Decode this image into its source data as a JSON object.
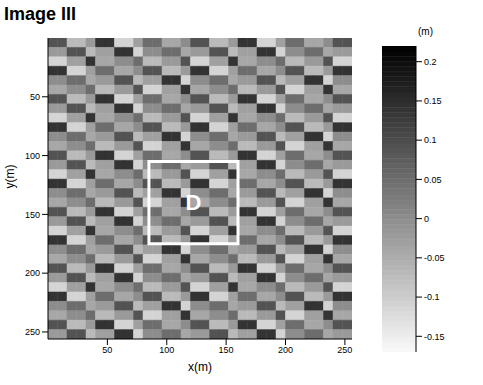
{
  "chart_data": {
    "type": "heatmap",
    "title": "Image III",
    "xlabel": "x(m)",
    "ylabel": "y(m)",
    "xlim": [
      0,
      256
    ],
    "ylim": [
      0,
      256
    ],
    "xticks": [
      50,
      100,
      150,
      200,
      250
    ],
    "yticks": [
      50,
      100,
      150,
      200,
      250
    ],
    "colorbar": {
      "label": "(m)",
      "range": [
        -0.17,
        0.22
      ],
      "ticks": [
        0.2,
        0.15,
        0.1,
        0.05,
        0,
        -0.05,
        -0.1,
        -0.15
      ]
    },
    "annotations": [
      {
        "text": "D",
        "x0": 85,
        "x1": 160,
        "y0": 105,
        "y1": 175
      }
    ],
    "cells": [
      [
        0.09,
        0.09,
        -0.07,
        -0.07,
        -0.02,
        0.14,
        0.14,
        -0.11,
        -0.11,
        -0.03,
        0.05,
        0.05,
        -0.04,
        -0.04,
        0,
        0.09,
        0.09,
        -0.07,
        -0.07,
        -0.02,
        0.14,
        0.14,
        -0.11,
        -0.11,
        -0.03,
        0.05,
        0.05,
        -0.04,
        -0.04,
        0,
        0.09,
        0.09
      ],
      [
        -0.02,
        -0.02,
        0.09,
        0.09,
        -0.07,
        -0.03,
        -0.03,
        0.14,
        0.14,
        -0.11,
        0,
        0,
        0.05,
        0.05,
        -0.04,
        -0.02,
        -0.02,
        0.09,
        0.09,
        -0.07,
        -0.03,
        -0.03,
        0.14,
        0.14,
        -0.11,
        0,
        0,
        0.05,
        0.05,
        -0.04,
        -0.02,
        -0.02
      ],
      [
        -0.11,
        -0.11,
        -0.03,
        -0.03,
        0.14,
        -0.04,
        -0.04,
        0,
        0,
        0.05,
        -0.07,
        -0.07,
        -0.02,
        -0.02,
        0.09,
        -0.11,
        -0.11,
        -0.03,
        -0.03,
        0.14,
        -0.04,
        -0.04,
        0,
        0,
        0.05,
        -0.07,
        -0.07,
        -0.02,
        -0.02,
        0.09,
        -0.11,
        -0.11
      ],
      [
        0.14,
        0.14,
        -0.11,
        -0.11,
        -0.03,
        0.05,
        0.05,
        -0.04,
        -0.04,
        0,
        0.09,
        0.09,
        -0.07,
        -0.07,
        -0.02,
        0.14,
        0.14,
        -0.11,
        -0.11,
        -0.03,
        0.05,
        0.05,
        -0.04,
        -0.04,
        0,
        0.09,
        0.09,
        -0.07,
        -0.07,
        -0.02,
        0.14,
        0.14
      ],
      [
        0,
        0,
        0.05,
        0.05,
        -0.04,
        -0.02,
        -0.02,
        0.09,
        0.09,
        -0.07,
        -0.03,
        -0.03,
        0.14,
        0.14,
        -0.11,
        0,
        0,
        0.05,
        0.05,
        -0.04,
        -0.02,
        -0.02,
        0.09,
        0.09,
        -0.07,
        -0.03,
        -0.03,
        0.14,
        0.14,
        -0.11,
        0,
        0
      ],
      [
        -0.04,
        -0.04,
        0,
        0,
        0.05,
        -0.07,
        -0.07,
        -0.02,
        -0.02,
        0.09,
        -0.11,
        -0.11,
        -0.03,
        -0.03,
        0.14,
        -0.04,
        -0.04,
        0,
        0,
        0.05,
        -0.07,
        -0.07,
        -0.02,
        -0.02,
        0.09,
        -0.11,
        -0.11,
        -0.03,
        -0.03,
        0.14,
        -0.04,
        -0.04
      ],
      [
        0.09,
        0.09,
        -0.07,
        -0.07,
        -0.02,
        0.14,
        0.14,
        -0.11,
        -0.11,
        -0.03,
        0.05,
        0.05,
        -0.04,
        -0.04,
        0,
        0.09,
        0.09,
        -0.07,
        -0.07,
        -0.02,
        0.14,
        0.14,
        -0.11,
        -0.11,
        -0.03,
        0.05,
        0.05,
        -0.04,
        -0.04,
        0,
        0.09,
        0.09
      ],
      [
        -0.02,
        -0.02,
        0.09,
        0.09,
        -0.07,
        -0.03,
        -0.03,
        0.14,
        0.14,
        -0.11,
        0,
        0,
        0.05,
        0.05,
        -0.04,
        -0.02,
        -0.02,
        0.09,
        0.09,
        -0.07,
        -0.03,
        -0.03,
        0.14,
        0.14,
        -0.11,
        0,
        0,
        0.05,
        0.05,
        -0.04,
        -0.02,
        -0.02
      ],
      [
        -0.11,
        -0.11,
        -0.03,
        -0.03,
        0.14,
        -0.04,
        -0.04,
        0,
        0,
        0.05,
        -0.07,
        -0.07,
        -0.02,
        -0.02,
        0.09,
        -0.11,
        -0.11,
        -0.03,
        -0.03,
        0.14,
        -0.04,
        -0.04,
        0,
        0,
        0.05,
        -0.07,
        -0.07,
        -0.02,
        -0.02,
        0.09,
        -0.11,
        -0.11
      ],
      [
        0.14,
        0.14,
        -0.11,
        -0.11,
        -0.03,
        0.05,
        0.05,
        -0.04,
        -0.04,
        0,
        0.09,
        0.09,
        -0.07,
        -0.07,
        -0.02,
        0.14,
        0.14,
        -0.11,
        -0.11,
        -0.03,
        0.05,
        0.05,
        -0.04,
        -0.04,
        0,
        0.09,
        0.09,
        -0.07,
        -0.07,
        -0.02,
        0.14,
        0.14
      ],
      [
        0,
        0,
        0.05,
        0.05,
        -0.04,
        -0.02,
        -0.02,
        0.09,
        0.09,
        -0.07,
        -0.03,
        -0.03,
        0.14,
        0.14,
        -0.11,
        0,
        0,
        0.05,
        0.05,
        -0.04,
        -0.02,
        -0.02,
        0.09,
        0.09,
        -0.07,
        -0.03,
        -0.03,
        0.14,
        0.14,
        -0.11,
        0,
        0
      ],
      [
        -0.04,
        -0.04,
        0,
        0,
        0.05,
        -0.07,
        -0.07,
        -0.02,
        -0.02,
        0.09,
        -0.11,
        -0.11,
        -0.03,
        -0.03,
        0.14,
        -0.04,
        -0.04,
        0,
        0,
        0.05,
        -0.07,
        -0.07,
        -0.02,
        -0.02,
        0.09,
        -0.11,
        -0.11,
        -0.03,
        -0.03,
        0.14,
        -0.04,
        -0.04
      ],
      [
        0.09,
        0.09,
        -0.07,
        -0.07,
        -0.02,
        0.14,
        0.14,
        -0.11,
        -0.11,
        -0.03,
        0.05,
        0.05,
        -0.04,
        -0.04,
        0,
        0.09,
        0.09,
        -0.07,
        -0.07,
        -0.02,
        0.14,
        0.14,
        -0.11,
        -0.11,
        -0.03,
        0.05,
        0.05,
        -0.04,
        -0.04,
        0,
        0.09,
        0.09
      ],
      [
        -0.02,
        -0.02,
        0.09,
        0.09,
        -0.07,
        -0.03,
        -0.03,
        0.14,
        0.14,
        -0.11,
        0,
        0,
        0.05,
        0.05,
        -0.04,
        -0.02,
        -0.02,
        0.09,
        0.09,
        -0.07,
        -0.03,
        -0.03,
        0.14,
        0.14,
        -0.11,
        0,
        0,
        0.05,
        0.05,
        -0.04,
        -0.02,
        -0.02
      ],
      [
        -0.11,
        -0.11,
        -0.03,
        -0.03,
        0.14,
        -0.04,
        -0.04,
        0,
        0,
        0.05,
        -0.07,
        -0.07,
        -0.02,
        -0.02,
        0.09,
        -0.11,
        -0.11,
        -0.03,
        -0.03,
        0.14,
        -0.04,
        -0.04,
        0,
        0,
        0.05,
        -0.07,
        -0.07,
        -0.02,
        -0.02,
        0.09,
        -0.11,
        -0.11
      ],
      [
        0.14,
        0.14,
        -0.11,
        -0.11,
        -0.03,
        0.05,
        0.05,
        -0.04,
        -0.04,
        0,
        0.09,
        0.09,
        -0.07,
        -0.07,
        -0.02,
        0.14,
        0.14,
        -0.11,
        -0.11,
        -0.03,
        0.05,
        0.05,
        -0.04,
        -0.04,
        0,
        0.09,
        0.09,
        -0.07,
        -0.07,
        -0.02,
        0.14,
        0.14
      ],
      [
        0,
        0,
        0.05,
        0.05,
        -0.04,
        -0.02,
        -0.02,
        0.09,
        0.09,
        -0.07,
        -0.03,
        -0.03,
        0.14,
        0.14,
        -0.11,
        0,
        0,
        0.05,
        0.05,
        -0.04,
        -0.02,
        -0.02,
        0.09,
        0.09,
        -0.07,
        -0.03,
        -0.03,
        0.14,
        0.14,
        -0.11,
        0,
        0
      ],
      [
        -0.04,
        -0.04,
        0,
        0,
        0.05,
        -0.07,
        -0.07,
        -0.02,
        -0.02,
        0.09,
        -0.11,
        -0.11,
        -0.03,
        -0.03,
        0.14,
        -0.04,
        -0.04,
        0,
        0,
        0.05,
        -0.07,
        -0.07,
        -0.02,
        -0.02,
        0.09,
        -0.11,
        -0.11,
        -0.03,
        -0.03,
        0.14,
        -0.04,
        -0.04
      ],
      [
        0.09,
        0.09,
        -0.07,
        -0.07,
        -0.02,
        0.14,
        0.14,
        -0.11,
        -0.11,
        -0.03,
        0.05,
        0.05,
        -0.04,
        -0.04,
        0,
        0.09,
        0.09,
        -0.07,
        -0.07,
        -0.02,
        0.14,
        0.14,
        -0.11,
        -0.11,
        -0.03,
        0.05,
        0.05,
        -0.04,
        -0.04,
        0,
        0.09,
        0.09
      ],
      [
        -0.02,
        -0.02,
        0.09,
        0.09,
        -0.07,
        -0.03,
        -0.03,
        0.14,
        0.14,
        -0.11,
        0,
        0,
        0.05,
        0.05,
        -0.04,
        -0.02,
        -0.02,
        0.09,
        0.09,
        -0.07,
        -0.03,
        -0.03,
        0.14,
        0.14,
        -0.11,
        0,
        0,
        0.05,
        0.05,
        -0.04,
        -0.02,
        -0.02
      ],
      [
        -0.11,
        -0.11,
        -0.03,
        -0.03,
        0.14,
        -0.04,
        -0.04,
        0,
        0,
        0.05,
        -0.07,
        -0.07,
        -0.02,
        -0.02,
        0.09,
        -0.11,
        -0.11,
        -0.03,
        -0.03,
        0.14,
        -0.04,
        -0.04,
        0,
        0,
        0.05,
        -0.07,
        -0.07,
        -0.02,
        -0.02,
        0.09,
        -0.11,
        -0.11
      ],
      [
        0.14,
        0.14,
        -0.11,
        -0.11,
        -0.03,
        0.05,
        0.05,
        -0.04,
        -0.04,
        0,
        0.09,
        0.09,
        -0.07,
        -0.07,
        -0.02,
        0.14,
        0.14,
        -0.11,
        -0.11,
        -0.03,
        0.05,
        0.05,
        -0.04,
        -0.04,
        0,
        0.09,
        0.09,
        -0.07,
        -0.07,
        -0.02,
        0.14,
        0.14
      ],
      [
        0,
        0,
        0.05,
        0.05,
        -0.04,
        -0.02,
        -0.02,
        0.09,
        0.09,
        -0.07,
        -0.03,
        -0.03,
        0.14,
        0.14,
        -0.11,
        0,
        0,
        0.05,
        0.05,
        -0.04,
        -0.02,
        -0.02,
        0.09,
        0.09,
        -0.07,
        -0.03,
        -0.03,
        0.14,
        0.14,
        -0.11,
        0,
        0
      ],
      [
        -0.04,
        -0.04,
        0,
        0,
        0.05,
        -0.07,
        -0.07,
        -0.02,
        -0.02,
        0.09,
        -0.11,
        -0.11,
        -0.03,
        -0.03,
        0.14,
        -0.04,
        -0.04,
        0,
        0,
        0.05,
        -0.07,
        -0.07,
        -0.02,
        -0.02,
        0.09,
        -0.11,
        -0.11,
        -0.03,
        -0.03,
        0.14,
        -0.04,
        -0.04
      ],
      [
        0.09,
        0.09,
        -0.07,
        -0.07,
        -0.02,
        0.14,
        0.14,
        -0.11,
        -0.11,
        -0.03,
        0.05,
        0.05,
        -0.04,
        -0.04,
        0,
        0.09,
        0.09,
        -0.07,
        -0.07,
        -0.02,
        0.14,
        0.14,
        -0.11,
        -0.11,
        -0.03,
        0.05,
        0.05,
        -0.04,
        -0.04,
        0,
        0.09,
        0.09
      ],
      [
        -0.02,
        -0.02,
        0.09,
        0.09,
        -0.07,
        -0.03,
        -0.03,
        0.14,
        0.14,
        -0.11,
        0,
        0,
        0.05,
        0.05,
        -0.04,
        -0.02,
        -0.02,
        0.09,
        0.09,
        -0.07,
        -0.03,
        -0.03,
        0.14,
        0.14,
        -0.11,
        0,
        0,
        0.05,
        0.05,
        -0.04,
        -0.02,
        -0.02
      ],
      [
        -0.11,
        -0.11,
        -0.03,
        -0.03,
        0.14,
        -0.04,
        -0.04,
        0,
        0,
        0.05,
        -0.07,
        -0.07,
        -0.02,
        -0.02,
        0.09,
        -0.11,
        -0.11,
        -0.03,
        -0.03,
        0.14,
        -0.04,
        -0.04,
        0,
        0,
        0.05,
        -0.07,
        -0.07,
        -0.02,
        -0.02,
        0.09,
        -0.11,
        -0.11
      ],
      [
        0.14,
        0.14,
        -0.11,
        -0.11,
        -0.03,
        0.05,
        0.05,
        -0.04,
        -0.04,
        0,
        0.09,
        0.09,
        -0.07,
        -0.07,
        -0.02,
        0.14,
        0.14,
        -0.11,
        -0.11,
        -0.03,
        0.05,
        0.05,
        -0.04,
        -0.04,
        0,
        0.09,
        0.09,
        -0.07,
        -0.07,
        -0.02,
        0.14,
        0.14
      ],
      [
        0,
        0,
        0.05,
        0.05,
        -0.04,
        -0.02,
        -0.02,
        0.09,
        0.09,
        -0.07,
        -0.03,
        -0.03,
        0.14,
        0.14,
        -0.11,
        0,
        0,
        0.05,
        0.05,
        -0.04,
        -0.02,
        -0.02,
        0.09,
        0.09,
        -0.07,
        -0.03,
        -0.03,
        0.14,
        0.14,
        -0.11,
        0,
        0
      ],
      [
        -0.04,
        -0.04,
        0,
        0,
        0.05,
        -0.07,
        -0.07,
        -0.02,
        -0.02,
        0.09,
        -0.11,
        -0.11,
        -0.03,
        -0.03,
        0.14,
        -0.04,
        -0.04,
        0,
        0,
        0.05,
        -0.07,
        -0.07,
        -0.02,
        -0.02,
        0.09,
        -0.11,
        -0.11,
        -0.03,
        -0.03,
        0.14,
        -0.04,
        -0.04
      ],
      [
        0.09,
        0.09,
        -0.07,
        -0.07,
        -0.02,
        0.14,
        0.14,
        -0.11,
        -0.11,
        -0.03,
        0.05,
        0.05,
        -0.04,
        -0.04,
        0,
        0.09,
        0.09,
        -0.07,
        -0.07,
        -0.02,
        0.14,
        0.14,
        -0.11,
        -0.11,
        -0.03,
        0.05,
        0.05,
        -0.04,
        -0.04,
        0,
        0.09,
        0.09
      ],
      [
        -0.02,
        -0.02,
        0.09,
        0.09,
        -0.07,
        -0.03,
        -0.03,
        0.14,
        0.14,
        -0.11,
        0,
        0,
        0.05,
        0.05,
        -0.04,
        -0.02,
        -0.02,
        0.09,
        0.09,
        -0.07,
        -0.03,
        -0.03,
        0.14,
        0.14,
        -0.11,
        0,
        0,
        0.05,
        0.05,
        -0.04,
        -0.02,
        -0.02
      ]
    ]
  }
}
